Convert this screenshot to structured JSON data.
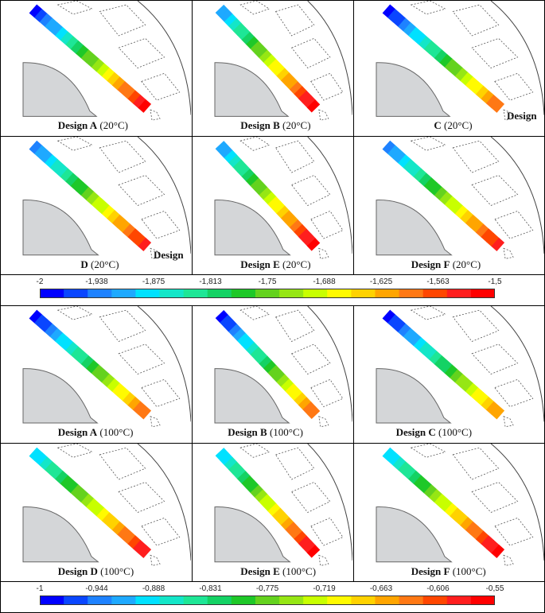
{
  "colormap": [
    "#0000ff",
    "#0a46ff",
    "#1e82ff",
    "#1ea9ff",
    "#00e1ff",
    "#14e6c8",
    "#1ee696",
    "#14d264",
    "#1ec828",
    "#64d21e",
    "#96e614",
    "#c8ff00",
    "#fffa00",
    "#ffd200",
    "#ffa500",
    "#ff7814",
    "#ff4600",
    "#ff1e1e",
    "#ff0000"
  ],
  "panels_20c": [
    {
      "bold": "Design A",
      "temp": "(20°C)",
      "extra": "",
      "stops": [
        0.0,
        1.0
      ]
    },
    {
      "bold": "Design B",
      "temp": "(20°C)",
      "extra": "",
      "stops": [
        0.15,
        1.0
      ]
    },
    {
      "bold": "C",
      "temp": "(20°C)",
      "extra": "Design",
      "stops": [
        0.0,
        0.85
      ]
    },
    {
      "bold": "D",
      "temp": "(20°C)",
      "extra": "Design",
      "stops": [
        0.1,
        0.95
      ]
    },
    {
      "bold": "Design E",
      "temp": "(20°C)",
      "extra": "",
      "stops": [
        0.15,
        1.0
      ]
    },
    {
      "bold": "Design F",
      "temp": "(20°C)",
      "extra": "",
      "stops": [
        0.1,
        0.95
      ]
    }
  ],
  "panels_100c": [
    {
      "bold": "Design A",
      "temp": "(100°C)",
      "extra": "",
      "stops": [
        0.0,
        0.85
      ]
    },
    {
      "bold": "Design B",
      "temp": "(100°C)",
      "extra": "",
      "stops": [
        0.0,
        0.85
      ]
    },
    {
      "bold": "Design C",
      "temp": "(100°C)",
      "extra": "",
      "stops": [
        0.0,
        0.8
      ]
    },
    {
      "bold": "Design D",
      "temp": "(100°C)",
      "extra": "",
      "stops": [
        0.2,
        0.95
      ]
    },
    {
      "bold": "Design E",
      "temp": "(100°C)",
      "extra": "",
      "stops": [
        0.2,
        1.0
      ]
    },
    {
      "bold": "Design F",
      "temp": "(100°C)",
      "extra": "",
      "stops": [
        0.2,
        1.0
      ]
    }
  ],
  "colorbar_20c": {
    "min": -2,
    "max": -1.5,
    "ticks": [
      "-2",
      "-1,938",
      "-1,875",
      "-1,813",
      "-1,75",
      "-1,688",
      "-1,625",
      "-1,563",
      "-1,5"
    ]
  },
  "colorbar_100c": {
    "min": -1,
    "max": -0.55,
    "ticks": [
      "-1",
      "-0,944",
      "-0,888",
      "-0,831",
      "-0,775",
      "-0,719",
      "-0,663",
      "-0,606",
      "-0,55"
    ]
  }
}
